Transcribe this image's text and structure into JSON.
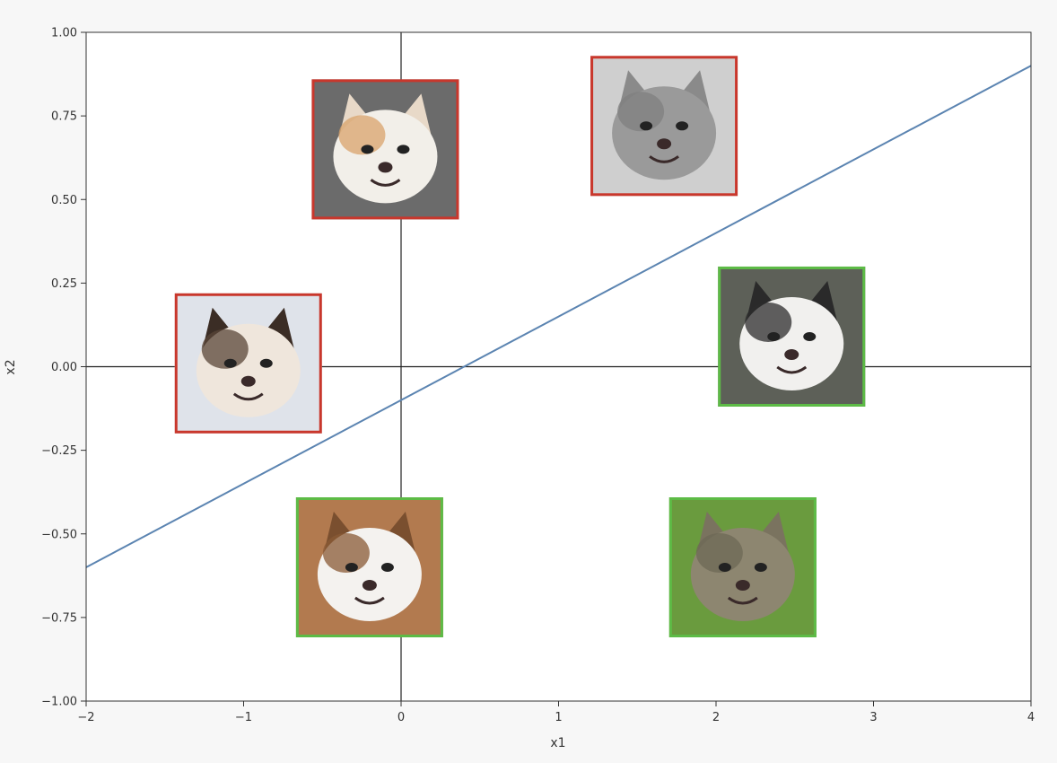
{
  "chart_data": {
    "type": "scatter",
    "xlabel": "x1",
    "ylabel": "x2",
    "xlim": [
      -2,
      4
    ],
    "ylim": [
      -1.0,
      1.0
    ],
    "xticks": [
      -2,
      -1,
      0,
      1,
      2,
      3,
      4
    ],
    "xtick_labels": [
      "−2",
      "−1",
      "0",
      "1",
      "2",
      "3",
      "4"
    ],
    "yticks": [
      1.0,
      0.75,
      0.5,
      0.25,
      0.0,
      -0.25,
      -0.5,
      -0.75,
      -1.0
    ],
    "ytick_labels": [
      "1.00",
      "0.75",
      "0.50",
      "0.25",
      "0.00",
      "−0.25",
      "−0.50",
      "−0.75",
      "−1.00"
    ],
    "axis_lines": {
      "x": 0,
      "y": 0
    },
    "grid": false,
    "decision_boundary": {
      "points": [
        [
          -2,
          -0.6
        ],
        [
          4,
          0.9
        ]
      ],
      "color": "#5b84b1"
    },
    "class_colors": {
      "cat": "#c9372c",
      "dog": "#5dbb46"
    },
    "points": [
      {
        "x": -0.1,
        "y": 0.65,
        "class": "cat",
        "icon": "laughing-calico-cat-icon"
      },
      {
        "x": 1.67,
        "y": 0.72,
        "class": "cat",
        "icon": "shocked-grey-cat-icon"
      },
      {
        "x": -0.97,
        "y": 0.01,
        "class": "cat",
        "icon": "grumpy-cat-icon"
      },
      {
        "x": 2.48,
        "y": 0.09,
        "class": "dog",
        "icon": "husky-dog-icon"
      },
      {
        "x": -0.2,
        "y": -0.6,
        "class": "dog",
        "icon": "angry-fluffy-puppy-icon"
      },
      {
        "x": 2.17,
        "y": -0.6,
        "class": "dog",
        "icon": "smiling-weimaraner-dog-icon"
      }
    ]
  }
}
